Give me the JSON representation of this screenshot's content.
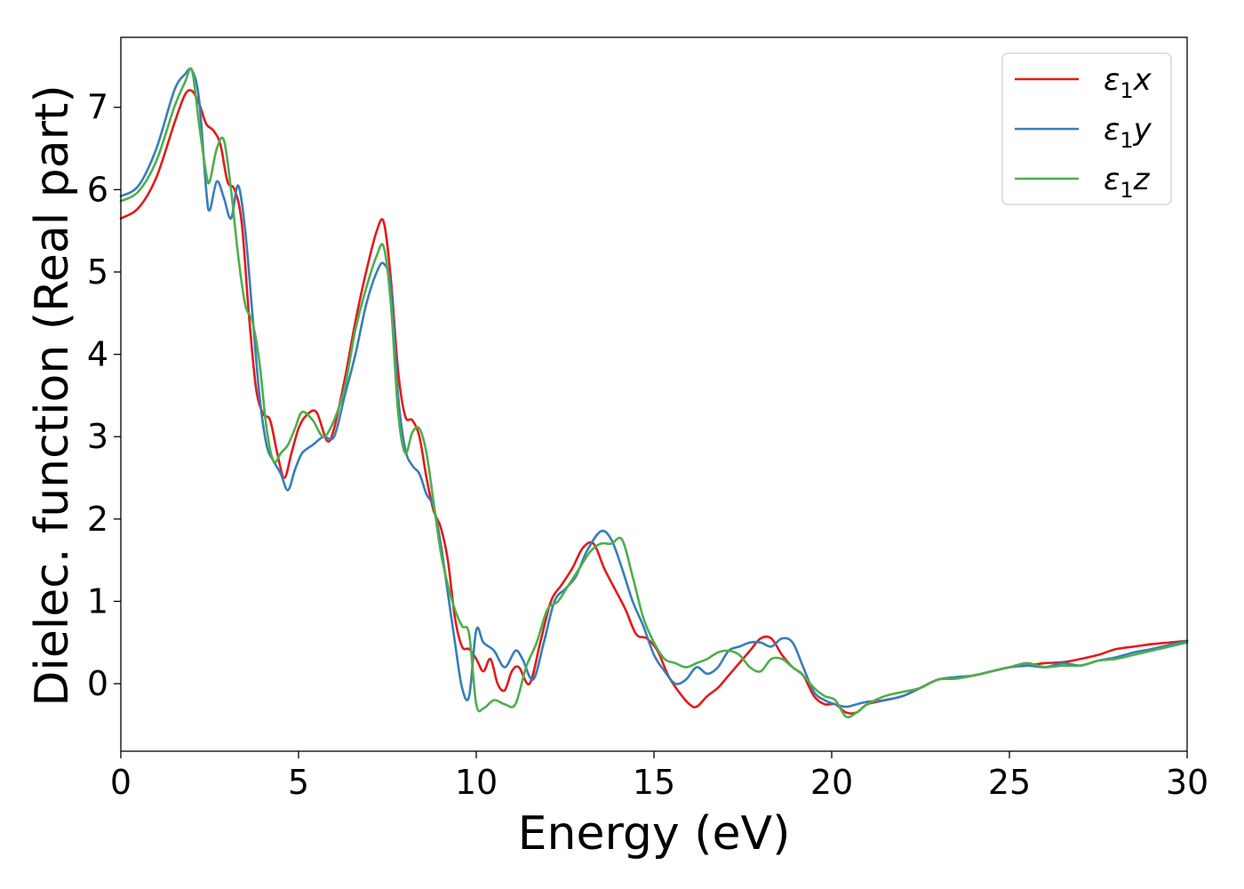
{
  "chart_data": {
    "type": "line",
    "title": "",
    "xlabel": "Energy (eV)",
    "ylabel": "Dielec. function (Real part)",
    "xlim": [
      0,
      30
    ],
    "ylim": [
      -0.82,
      7.85
    ],
    "xticks": [
      0,
      5,
      10,
      15,
      20,
      25,
      30
    ],
    "yticks": [
      0,
      1,
      2,
      3,
      4,
      5,
      6,
      7
    ],
    "grid": false,
    "legend_position": "top-right",
    "series": [
      {
        "name": "ε₁x",
        "legend_base": "ε",
        "legend_sub": "1",
        "legend_suffix": "x",
        "color": "#e41a1c",
        "x": [
          0,
          0.5,
          1.0,
          1.5,
          1.8,
          2.0,
          2.2,
          2.4,
          2.6,
          2.8,
          3.0,
          3.2,
          3.4,
          3.6,
          3.8,
          4.0,
          4.2,
          4.4,
          4.6,
          4.8,
          5.0,
          5.2,
          5.5,
          5.8,
          6.0,
          6.3,
          6.6,
          6.9,
          7.2,
          7.4,
          7.6,
          7.8,
          8.0,
          8.2,
          8.4,
          8.6,
          8.8,
          9.0,
          9.2,
          9.4,
          9.6,
          9.8,
          10.0,
          10.2,
          10.4,
          10.6,
          10.8,
          11.0,
          11.2,
          11.5,
          11.8,
          12.1,
          12.4,
          12.7,
          13.0,
          13.3,
          13.6,
          13.9,
          14.2,
          14.5,
          14.8,
          15.1,
          15.4,
          15.7,
          16.0,
          16.2,
          16.5,
          16.8,
          17.1,
          17.4,
          17.7,
          18.0,
          18.3,
          18.6,
          18.9,
          19.2,
          19.5,
          19.8,
          20.1,
          20.4,
          20.7,
          21.0,
          21.5,
          22.0,
          22.5,
          23.0,
          23.5,
          24.0,
          24.5,
          25.0,
          25.5,
          26.0,
          26.5,
          27.0,
          27.5,
          28.0,
          28.5,
          29.0,
          29.5,
          30.0
        ],
        "y": [
          5.65,
          5.78,
          6.15,
          6.8,
          7.15,
          7.2,
          7.05,
          6.8,
          6.72,
          6.55,
          6.1,
          6.0,
          5.6,
          4.5,
          3.6,
          3.28,
          3.2,
          2.8,
          2.5,
          2.8,
          3.1,
          3.25,
          3.3,
          2.95,
          3.1,
          3.7,
          4.4,
          5.0,
          5.5,
          5.6,
          4.9,
          3.8,
          3.25,
          3.2,
          3.0,
          2.5,
          2.1,
          1.9,
          1.5,
          0.8,
          0.45,
          0.42,
          0.3,
          0.15,
          0.3,
          0.0,
          -0.08,
          0.15,
          0.2,
          0.0,
          0.5,
          1.0,
          1.2,
          1.4,
          1.65,
          1.7,
          1.4,
          1.15,
          0.9,
          0.6,
          0.55,
          0.4,
          0.1,
          -0.1,
          -0.25,
          -0.28,
          -0.15,
          -0.05,
          0.1,
          0.25,
          0.4,
          0.55,
          0.55,
          0.35,
          0.2,
          0.1,
          -0.15,
          -0.25,
          -0.25,
          -0.35,
          -0.35,
          -0.25,
          -0.2,
          -0.15,
          -0.05,
          0.05,
          0.07,
          0.1,
          0.15,
          0.2,
          0.22,
          0.25,
          0.26,
          0.3,
          0.35,
          0.42,
          0.45,
          0.48,
          0.5,
          0.52
        ]
      },
      {
        "name": "ε₁y",
        "legend_base": "ε",
        "legend_sub": "1",
        "legend_suffix": "y",
        "color": "#377eb8",
        "x": [
          0,
          0.5,
          1.0,
          1.5,
          1.8,
          2.0,
          2.2,
          2.4,
          2.5,
          2.7,
          2.9,
          3.1,
          3.3,
          3.5,
          3.7,
          3.9,
          4.1,
          4.3,
          4.5,
          4.7,
          4.9,
          5.1,
          5.4,
          5.7,
          6.0,
          6.3,
          6.6,
          6.9,
          7.2,
          7.4,
          7.6,
          7.8,
          8.0,
          8.2,
          8.4,
          8.6,
          8.8,
          9.0,
          9.2,
          9.4,
          9.6,
          9.8,
          10.0,
          10.2,
          10.5,
          10.8,
          11.1,
          11.3,
          11.6,
          11.9,
          12.2,
          12.5,
          12.8,
          13.1,
          13.5,
          13.8,
          14.1,
          14.4,
          14.7,
          15.0,
          15.3,
          15.6,
          15.9,
          16.2,
          16.5,
          16.8,
          17.1,
          17.4,
          17.7,
          18.0,
          18.3,
          18.6,
          18.9,
          19.2,
          19.5,
          19.8,
          20.1,
          20.4,
          20.7,
          21.0,
          21.5,
          22.0,
          22.5,
          23.0,
          23.5,
          24.0,
          24.5,
          25.0,
          25.5,
          26.0,
          26.5,
          27.0,
          27.5,
          28.0,
          28.5,
          29.0,
          29.5,
          30.0
        ],
        "y": [
          5.92,
          6.05,
          6.5,
          7.2,
          7.4,
          7.45,
          7.1,
          6.0,
          5.75,
          6.1,
          5.9,
          5.65,
          6.05,
          5.5,
          4.5,
          3.5,
          2.9,
          2.7,
          2.55,
          2.35,
          2.6,
          2.8,
          2.9,
          3.0,
          3.0,
          3.5,
          4.0,
          4.6,
          5.0,
          5.1,
          4.8,
          3.5,
          2.85,
          2.65,
          2.55,
          2.3,
          2.15,
          1.7,
          1.1,
          0.5,
          -0.05,
          -0.15,
          0.65,
          0.5,
          0.4,
          0.2,
          0.4,
          0.3,
          0.05,
          0.5,
          1.0,
          1.15,
          1.3,
          1.6,
          1.85,
          1.75,
          1.4,
          1.0,
          0.7,
          0.35,
          0.15,
          0.0,
          0.05,
          0.2,
          0.12,
          0.2,
          0.4,
          0.45,
          0.5,
          0.5,
          0.45,
          0.55,
          0.5,
          0.2,
          -0.1,
          -0.2,
          -0.25,
          -0.28,
          -0.25,
          -0.22,
          -0.2,
          -0.15,
          -0.05,
          0.05,
          0.08,
          0.1,
          0.15,
          0.2,
          0.22,
          0.2,
          0.25,
          0.22,
          0.28,
          0.32,
          0.38,
          0.42,
          0.47,
          0.52
        ]
      },
      {
        "name": "ε₁z",
        "legend_base": "ε",
        "legend_sub": "1",
        "legend_suffix": "z",
        "color": "#4daf4a",
        "x": [
          0,
          0.5,
          1.0,
          1.5,
          1.8,
          2.0,
          2.2,
          2.4,
          2.5,
          2.7,
          2.9,
          3.1,
          3.3,
          3.5,
          3.7,
          3.9,
          4.1,
          4.3,
          4.5,
          4.7,
          4.9,
          5.1,
          5.4,
          5.7,
          6.0,
          6.3,
          6.6,
          6.9,
          7.2,
          7.4,
          7.6,
          7.8,
          8.0,
          8.2,
          8.4,
          8.6,
          8.8,
          9.0,
          9.2,
          9.4,
          9.6,
          9.8,
          10.0,
          10.2,
          10.5,
          10.8,
          11.1,
          11.4,
          11.7,
          12.0,
          12.3,
          12.6,
          12.9,
          13.2,
          13.5,
          13.8,
          14.1,
          14.4,
          14.7,
          15.0,
          15.3,
          15.6,
          15.9,
          16.2,
          16.5,
          16.8,
          17.1,
          17.4,
          17.7,
          18.0,
          18.3,
          18.6,
          18.9,
          19.2,
          19.5,
          19.8,
          20.1,
          20.4,
          20.7,
          21.0,
          21.5,
          22.0,
          22.5,
          23.0,
          23.5,
          24.0,
          24.5,
          25.0,
          25.5,
          26.0,
          26.5,
          27.0,
          27.5,
          28.0,
          28.5,
          29.0,
          29.5,
          30.0
        ],
        "y": [
          5.86,
          5.98,
          6.35,
          7.0,
          7.3,
          7.45,
          6.8,
          6.2,
          6.1,
          6.5,
          6.6,
          6.0,
          5.2,
          4.6,
          4.4,
          3.9,
          3.1,
          2.7,
          2.8,
          2.9,
          3.1,
          3.3,
          3.2,
          3.0,
          3.2,
          3.6,
          4.3,
          4.8,
          5.2,
          5.3,
          4.6,
          3.3,
          2.8,
          3.05,
          3.1,
          2.8,
          2.2,
          1.6,
          1.2,
          0.9,
          0.7,
          0.6,
          -0.25,
          -0.3,
          -0.2,
          -0.25,
          -0.25,
          0.2,
          0.5,
          0.9,
          1.0,
          1.2,
          1.4,
          1.6,
          1.7,
          1.7,
          1.75,
          1.3,
          0.8,
          0.5,
          0.3,
          0.25,
          0.2,
          0.25,
          0.3,
          0.38,
          0.4,
          0.35,
          0.2,
          0.15,
          0.3,
          0.3,
          0.2,
          0.1,
          -0.05,
          -0.15,
          -0.2,
          -0.4,
          -0.35,
          -0.25,
          -0.15,
          -0.1,
          -0.05,
          0.05,
          0.06,
          0.1,
          0.15,
          0.2,
          0.25,
          0.2,
          0.22,
          0.22,
          0.28,
          0.3,
          0.35,
          0.4,
          0.45,
          0.5
        ]
      }
    ]
  }
}
